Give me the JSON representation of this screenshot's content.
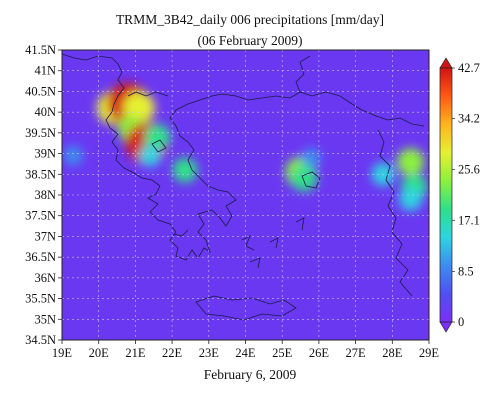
{
  "chart_data": {
    "type": "heatmap",
    "title": "TRMM_3B42_daily 006 precipitations [mm/day]",
    "subtitle": "(06 February 2009)",
    "caption": "February 6, 2009",
    "x_ticks": [
      "19E",
      "20E",
      "21E",
      "22E",
      "23E",
      "24E",
      "25E",
      "26E",
      "27E",
      "28E",
      "29E"
    ],
    "x_tick_values": [
      19,
      20,
      21,
      22,
      23,
      24,
      25,
      26,
      27,
      28,
      29
    ],
    "y_ticks": [
      "34.5N",
      "35N",
      "35.5N",
      "36N",
      "36.5N",
      "37N",
      "37.5N",
      "38N",
      "38.5N",
      "39N",
      "39.5N",
      "40N",
      "40.5N",
      "41N",
      "41.5N"
    ],
    "y_tick_values": [
      34.5,
      35,
      35.5,
      36,
      36.5,
      37,
      37.5,
      38,
      38.5,
      39,
      39.5,
      40,
      40.5,
      41,
      41.5
    ],
    "xlim": [
      19,
      29
    ],
    "ylim": [
      34.5,
      41.5
    ],
    "grid": true,
    "colorbar": {
      "labels": [
        "0",
        "8.5",
        "17.1",
        "25.6",
        "34.2",
        "42.7"
      ],
      "values": [
        0,
        8.5,
        17.1,
        25.6,
        34.2,
        42.7
      ],
      "range": [
        0,
        42.7
      ],
      "placement": "right",
      "colors": [
        "#7b2ff7",
        "#5050f0",
        "#3c8cf0",
        "#2ed4e0",
        "#2ee08a",
        "#8cf03c",
        "#e6f032",
        "#ffb41e",
        "#ff5a14",
        "#d21414"
      ]
    },
    "background_value_mm_day": 3,
    "precipitation_cells": [
      {
        "lon": 20.4,
        "lat": 40.1,
        "value": 30
      },
      {
        "lon": 20.8,
        "lat": 40.2,
        "value": 42.7
      },
      {
        "lon": 21.1,
        "lat": 40.1,
        "value": 28
      },
      {
        "lon": 20.9,
        "lat": 39.6,
        "value": 22
      },
      {
        "lon": 21.3,
        "lat": 39.3,
        "value": 34
      },
      {
        "lon": 21.3,
        "lat": 39.25,
        "value": 42
      },
      {
        "lon": 21.6,
        "lat": 39.4,
        "value": 20
      },
      {
        "lon": 21.4,
        "lat": 38.95,
        "value": 14
      },
      {
        "lon": 19.3,
        "lat": 38.95,
        "value": 11
      },
      {
        "lon": 22.35,
        "lat": 38.6,
        "value": 18
      },
      {
        "lon": 25.5,
        "lat": 38.55,
        "value": 26
      },
      {
        "lon": 25.6,
        "lat": 38.4,
        "value": 20
      },
      {
        "lon": 25.8,
        "lat": 38.9,
        "value": 10
      },
      {
        "lon": 27.75,
        "lat": 38.5,
        "value": 16
      },
      {
        "lon": 28.5,
        "lat": 38.8,
        "value": 22
      },
      {
        "lon": 28.6,
        "lat": 38.2,
        "value": 20
      },
      {
        "lon": 28.5,
        "lat": 37.9,
        "value": 16
      }
    ]
  }
}
